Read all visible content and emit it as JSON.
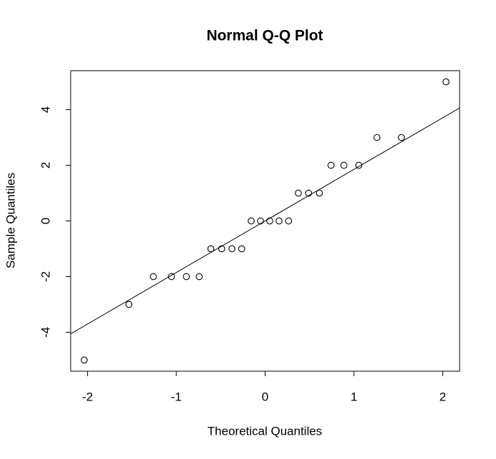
{
  "chart_data": {
    "type": "scatter",
    "title": "Normal Q-Q Plot",
    "x_label": "Theoretical Quantiles",
    "y_label": "Sample Quantiles",
    "x": [
      -2.037,
      -1.534,
      -1.259,
      -1.055,
      -0.887,
      -0.742,
      -0.611,
      -0.489,
      -0.374,
      -0.264,
      -0.157,
      -0.052,
      0.052,
      0.157,
      0.264,
      0.374,
      0.489,
      0.611,
      0.742,
      0.887,
      1.055,
      1.259,
      1.534,
      2.037
    ],
    "values": [
      -5,
      -3,
      -2,
      -2,
      -2,
      -2,
      -1,
      -1,
      -1,
      -1,
      0,
      0,
      0,
      0,
      0,
      1,
      1,
      1,
      2,
      2,
      2,
      3,
      3,
      5
    ],
    "color": "#000000",
    "reference_line": {
      "intercept": 0,
      "slope": 1.853
    },
    "xlim": [
      -2.19,
      2.19
    ],
    "ylim": [
      -5.4,
      5.4
    ],
    "xticks": [
      -2,
      -1,
      0,
      1,
      2
    ],
    "yticks": [
      -4,
      -2,
      0,
      2,
      4
    ]
  }
}
